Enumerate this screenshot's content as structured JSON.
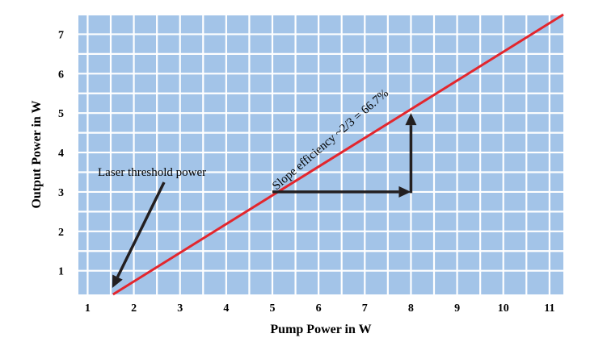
{
  "chart_data": {
    "type": "line",
    "xlabel": "Pump Power in W",
    "ylabel": "Output Power in W",
    "xlim": [
      0.8,
      11.3
    ],
    "ylim": [
      0.4,
      7.5
    ],
    "xticks": [
      1,
      2,
      3,
      4,
      5,
      6,
      7,
      8,
      9,
      10,
      11
    ],
    "yticks": [
      1,
      2,
      3,
      4,
      5,
      6,
      7
    ],
    "grid": true,
    "background_color": "#a3c4e8",
    "line_color": "#e3262d",
    "series": [
      {
        "x": [
          1.55,
          11.3
        ],
        "y": [
          0.4,
          7.5
        ]
      }
    ],
    "annotations": {
      "threshold": {
        "text": "Laser threshold power",
        "points_to": [
          1.55,
          0.4
        ]
      },
      "slope": {
        "text": "Slope efficiency ~2/3 = 66.7%",
        "run": [
          [
            5,
            3
          ],
          [
            8,
            3
          ]
        ],
        "rise": [
          [
            8,
            3
          ],
          [
            8,
            5
          ]
        ]
      }
    }
  }
}
